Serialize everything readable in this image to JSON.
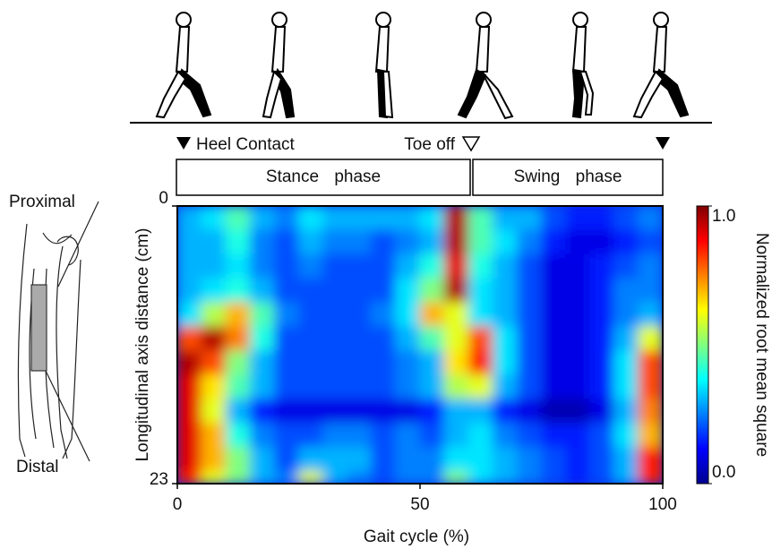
{
  "chart_data": {
    "type": "heatmap",
    "xlabel": "Gait cycle (%)",
    "ylabel": "Longitudinal axis distance (cm)",
    "colorbar_label": "Normalized root mean square",
    "events": [
      "Heel Contact",
      "Toe off"
    ],
    "phases": [
      "Stance phase",
      "Swing phase"
    ],
    "diagram_labels": [
      "Proximal",
      "Distal"
    ],
    "xlim": [
      0,
      100
    ],
    "xticks": [
      0,
      50,
      100
    ],
    "ylim": [
      0,
      23
    ],
    "yticks": [
      0,
      23
    ],
    "clim": [
      0,
      1
    ],
    "cticks": [
      {
        "value": 1,
        "label": "1.0"
      },
      {
        "value": 0,
        "label": "0.0"
      }
    ],
    "colormap": "jet",
    "x": [
      0,
      5,
      10,
      15,
      20,
      25,
      30,
      35,
      40,
      45,
      50,
      55,
      60,
      65,
      70,
      75,
      80,
      85,
      90,
      95
    ],
    "y": [
      0,
      2,
      4,
      6,
      8,
      10,
      12,
      14,
      16,
      18,
      20,
      22
    ],
    "values": [
      [
        0.3,
        0.35,
        0.45,
        0.3,
        0.25,
        0.35,
        0.3,
        0.3,
        0.3,
        0.3,
        0.35,
        0.95,
        0.45,
        0.3,
        0.3,
        0.2,
        0.15,
        0.15,
        0.2,
        0.25
      ],
      [
        0.3,
        0.3,
        0.4,
        0.25,
        0.2,
        0.3,
        0.25,
        0.25,
        0.2,
        0.25,
        0.3,
        0.95,
        0.45,
        0.35,
        0.25,
        0.15,
        0.1,
        0.1,
        0.15,
        0.2
      ],
      [
        0.3,
        0.3,
        0.35,
        0.25,
        0.2,
        0.25,
        0.2,
        0.2,
        0.2,
        0.3,
        0.4,
        0.9,
        0.4,
        0.3,
        0.2,
        0.1,
        0.1,
        0.15,
        0.2,
        0.25
      ],
      [
        0.3,
        0.35,
        0.4,
        0.3,
        0.2,
        0.2,
        0.2,
        0.2,
        0.2,
        0.35,
        0.5,
        0.95,
        0.35,
        0.3,
        0.2,
        0.1,
        0.1,
        0.15,
        0.25,
        0.25
      ],
      [
        0.35,
        0.55,
        0.7,
        0.45,
        0.25,
        0.2,
        0.2,
        0.2,
        0.25,
        0.35,
        0.7,
        0.6,
        0.35,
        0.3,
        0.2,
        0.1,
        0.1,
        0.15,
        0.25,
        0.3
      ],
      [
        0.8,
        0.95,
        0.75,
        0.4,
        0.2,
        0.2,
        0.2,
        0.2,
        0.2,
        0.3,
        0.45,
        0.6,
        0.8,
        0.35,
        0.2,
        0.1,
        0.1,
        0.15,
        0.3,
        0.6
      ],
      [
        0.95,
        0.8,
        0.5,
        0.3,
        0.2,
        0.2,
        0.2,
        0.2,
        0.2,
        0.25,
        0.3,
        0.65,
        0.85,
        0.35,
        0.2,
        0.1,
        0.1,
        0.15,
        0.35,
        0.8
      ],
      [
        0.9,
        0.65,
        0.45,
        0.3,
        0.2,
        0.2,
        0.2,
        0.2,
        0.2,
        0.25,
        0.3,
        0.55,
        0.6,
        0.3,
        0.2,
        0.1,
        0.1,
        0.15,
        0.35,
        0.8
      ],
      [
        0.9,
        0.6,
        0.3,
        0.15,
        0.1,
        0.1,
        0.1,
        0.1,
        0.1,
        0.1,
        0.15,
        0.3,
        0.3,
        0.15,
        0.1,
        0.05,
        0.05,
        0.1,
        0.3,
        0.75
      ],
      [
        0.9,
        0.7,
        0.4,
        0.25,
        0.2,
        0.2,
        0.25,
        0.25,
        0.2,
        0.25,
        0.2,
        0.3,
        0.35,
        0.25,
        0.2,
        0.15,
        0.15,
        0.2,
        0.35,
        0.7
      ],
      [
        0.9,
        0.7,
        0.5,
        0.3,
        0.2,
        0.3,
        0.3,
        0.3,
        0.2,
        0.25,
        0.25,
        0.35,
        0.35,
        0.3,
        0.25,
        0.2,
        0.15,
        0.2,
        0.3,
        0.85
      ],
      [
        0.85,
        0.6,
        0.5,
        0.3,
        0.25,
        0.6,
        0.3,
        0.25,
        0.2,
        0.25,
        0.25,
        0.5,
        0.35,
        0.3,
        0.25,
        0.2,
        0.15,
        0.2,
        0.3,
        0.85
      ]
    ]
  }
}
